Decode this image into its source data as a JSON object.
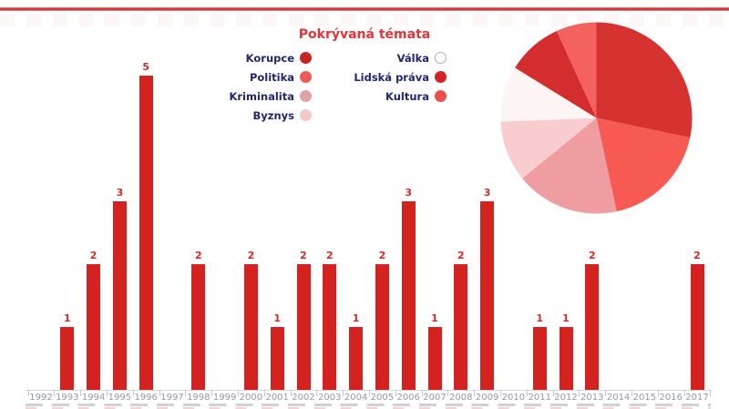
{
  "header": {
    "divider_color": "#d7363e"
  },
  "legend": {
    "title": "Pokrývaná témata",
    "title_color": "#e2343a",
    "label_color": "#22266f",
    "columns": [
      [
        {
          "label": "Korupce",
          "color": "#c62523"
        },
        {
          "label": "Politika",
          "color": "#ee5a55"
        },
        {
          "label": "Kriminalita",
          "color": "#e0a2a5"
        },
        {
          "label": "Byznys",
          "color": "#f5c8cc"
        }
      ],
      [
        {
          "label": "Válka",
          "color": "#ffffff",
          "border": "#b0b0b5"
        },
        {
          "label": "Lidská práva",
          "color": "#d42126"
        },
        {
          "label": "Kultura",
          "color": "#ee4f4c"
        }
      ]
    ]
  },
  "chart_data": [
    {
      "type": "bar",
      "title": "",
      "categories": [
        "1992",
        "1993",
        "1994",
        "1995",
        "1996",
        "1997",
        "1998",
        "1999",
        "2000",
        "2001",
        "2002",
        "2003",
        "2004",
        "2005",
        "2006",
        "2007",
        "2008",
        "2009",
        "2010",
        "2011",
        "2012",
        "2013",
        "2014",
        "2015",
        "2016",
        "2017"
      ],
      "values": [
        0,
        1,
        2,
        3,
        5,
        0,
        2,
        0,
        2,
        1,
        2,
        2,
        1,
        2,
        3,
        1,
        2,
        3,
        0,
        1,
        1,
        2,
        0,
        0,
        0,
        2
      ],
      "ylim": [
        0,
        5
      ],
      "grid": false,
      "show_value_labels": true,
      "bar_color": "#d42220",
      "value_label_color": "#d42a26",
      "tick_label_color": "#9496ad",
      "axis_color": "#d4d6e2"
    },
    {
      "type": "pie",
      "labels": [
        "Korupce",
        "Politika",
        "Kriminalita",
        "Byznys",
        "Válka",
        "Lidská práva",
        "Kultura"
      ],
      "values": [
        28.3,
        18.3,
        17.5,
        10.3,
        9.4,
        9.4,
        6.8
      ],
      "unit": "percent",
      "colors": [
        "#d63330",
        "#f65a52",
        "#ef9da0",
        "#f9cdd0",
        "#fdf5f4",
        "#d32d2e",
        "#f3625f"
      ],
      "start_angle_deg": 0,
      "clockwise": true,
      "legend_position": "left"
    }
  ]
}
